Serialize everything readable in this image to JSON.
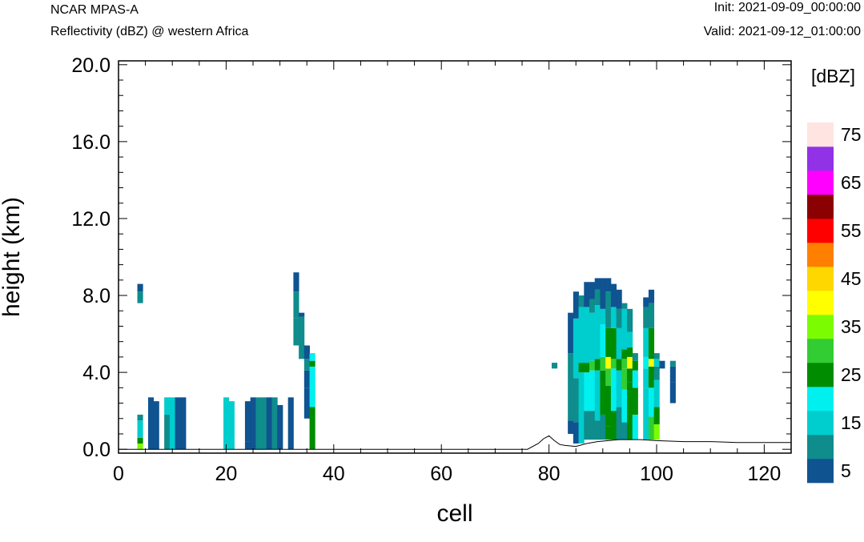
{
  "header": {
    "model": "NCAR MPAS-A",
    "field_title": "Reflectivity (dBZ) @ western Africa",
    "init": "Init: 2021-09-09_00:00:00",
    "valid": "Valid: 2021-09-12_01:00:00"
  },
  "chart_data": {
    "type": "heatmap",
    "xlabel": "cell",
    "ylabel": "height (km)",
    "xlim": [
      0,
      125
    ],
    "ylim": [
      -0.2,
      20.2
    ],
    "xticks": [
      0,
      20,
      40,
      60,
      80,
      100,
      120
    ],
    "xtick_labels": [
      "0",
      "20",
      "40",
      "60",
      "80",
      "100",
      "120"
    ],
    "yticks": [
      0,
      4,
      8,
      12,
      16,
      20
    ],
    "ytick_labels": [
      "0.0",
      "4.0",
      "8.0",
      "12.0",
      "16.0",
      "20.0"
    ],
    "grid": false,
    "colorbar": {
      "unit_label": "[dBZ]",
      "levels": [
        5,
        10,
        15,
        20,
        25,
        30,
        35,
        40,
        45,
        50,
        55,
        60,
        65,
        70,
        75
      ],
      "tick_labels": [
        "5",
        "15",
        "25",
        "35",
        "45",
        "55",
        "65",
        "75"
      ],
      "colors": [
        "#0f5391",
        "#0f8c8c",
        "#00cdcd",
        "#00f0f0",
        "#008c00",
        "#32cd32",
        "#7cfc00",
        "#ffff00",
        "#ffd700",
        "#ff7f00",
        "#ff0000",
        "#8b0000",
        "#ff00ff",
        "#9132e6",
        "#ffe4e1"
      ]
    },
    "terrain": {
      "cells": [
        0,
        76,
        78,
        79,
        80,
        81,
        82,
        83,
        85,
        87,
        89,
        91,
        93,
        95,
        97,
        100,
        105,
        110,
        115,
        120,
        125
      ],
      "height_km": [
        0.0,
        0.0,
        0.3,
        0.55,
        0.7,
        0.45,
        0.25,
        0.2,
        0.15,
        0.3,
        0.4,
        0.45,
        0.5,
        0.5,
        0.5,
        0.45,
        0.4,
        0.4,
        0.35,
        0.35,
        0.35
      ]
    },
    "reflectivity_columns": [
      {
        "cell": 4,
        "segments": [
          [
            0.0,
            0.3,
            35
          ],
          [
            0.3,
            0.6,
            25
          ],
          [
            0.6,
            1.5,
            15
          ],
          [
            1.5,
            1.8,
            10
          ],
          [
            7.6,
            8.2,
            10
          ],
          [
            8.2,
            8.6,
            5
          ]
        ]
      },
      {
        "cell": 6,
        "segments": [
          [
            0.0,
            2.7,
            5
          ]
        ]
      },
      {
        "cell": 7,
        "segments": [
          [
            0.0,
            2.5,
            5
          ]
        ]
      },
      {
        "cell": 9,
        "segments": [
          [
            0.0,
            1.8,
            10
          ],
          [
            1.8,
            2.7,
            15
          ]
        ]
      },
      {
        "cell": 10,
        "segments": [
          [
            0.0,
            2.7,
            15
          ]
        ]
      },
      {
        "cell": 11,
        "segments": [
          [
            0.0,
            2.7,
            5
          ]
        ]
      },
      {
        "cell": 12,
        "segments": [
          [
            0.0,
            2.7,
            5
          ]
        ]
      },
      {
        "cell": 20,
        "segments": [
          [
            0.0,
            2.7,
            15
          ]
        ]
      },
      {
        "cell": 21,
        "segments": [
          [
            0.0,
            2.5,
            15
          ]
        ]
      },
      {
        "cell": 24,
        "segments": [
          [
            0.0,
            0.4,
            5
          ],
          [
            0.4,
            2.5,
            5
          ]
        ]
      },
      {
        "cell": 25,
        "segments": [
          [
            0.0,
            2.7,
            5
          ]
        ]
      },
      {
        "cell": 26,
        "segments": [
          [
            0.0,
            2.7,
            10
          ]
        ]
      },
      {
        "cell": 27,
        "segments": [
          [
            0.0,
            2.7,
            10
          ]
        ]
      },
      {
        "cell": 28,
        "segments": [
          [
            0.0,
            2.7,
            5
          ]
        ]
      },
      {
        "cell": 29,
        "segments": [
          [
            0.0,
            2.7,
            10
          ]
        ]
      },
      {
        "cell": 30,
        "segments": [
          [
            0.0,
            2.3,
            5
          ]
        ]
      },
      {
        "cell": 32,
        "segments": [
          [
            0.0,
            2.7,
            5
          ]
        ]
      },
      {
        "cell": 33,
        "segments": [
          [
            5.4,
            6.8,
            10
          ],
          [
            6.8,
            8.2,
            10
          ],
          [
            8.2,
            9.2,
            5
          ]
        ]
      },
      {
        "cell": 34,
        "segments": [
          [
            4.7,
            5.9,
            10
          ],
          [
            5.9,
            6.9,
            10
          ],
          [
            6.9,
            7.1,
            5
          ]
        ]
      },
      {
        "cell": 35,
        "segments": [
          [
            1.6,
            3.2,
            5
          ],
          [
            3.2,
            4.1,
            5
          ],
          [
            4.1,
            4.7,
            10
          ],
          [
            4.7,
            5.4,
            5
          ]
        ]
      },
      {
        "cell": 36,
        "segments": [
          [
            0.0,
            2.2,
            25
          ],
          [
            2.2,
            4.3,
            20
          ],
          [
            4.3,
            4.6,
            25
          ],
          [
            4.6,
            5.0,
            20
          ]
        ]
      },
      {
        "cell": 81,
        "segments": [
          [
            4.2,
            4.5,
            10
          ]
        ]
      },
      {
        "cell": 84,
        "segments": [
          [
            0.8,
            1.5,
            5
          ],
          [
            1.5,
            5.0,
            10
          ],
          [
            5.0,
            7.1,
            5
          ]
        ]
      },
      {
        "cell": 85,
        "segments": [
          [
            0.3,
            1.4,
            5
          ],
          [
            1.4,
            3.7,
            10
          ],
          [
            3.7,
            6.8,
            15
          ],
          [
            6.8,
            8.2,
            5
          ]
        ]
      },
      {
        "cell": 86,
        "segments": [
          [
            0.3,
            4.0,
            15
          ],
          [
            4.0,
            4.5,
            25
          ],
          [
            4.5,
            7.4,
            15
          ],
          [
            7.4,
            8.0,
            10
          ]
        ]
      },
      {
        "cell": 87,
        "segments": [
          [
            0.5,
            2.0,
            10
          ],
          [
            2.0,
            4.0,
            20
          ],
          [
            4.0,
            4.5,
            25
          ],
          [
            4.5,
            7.4,
            15
          ],
          [
            7.4,
            8.7,
            5
          ]
        ]
      },
      {
        "cell": 88,
        "segments": [
          [
            0.5,
            2.0,
            10
          ],
          [
            2.0,
            4.1,
            20
          ],
          [
            4.1,
            4.6,
            30
          ],
          [
            4.6,
            7.1,
            15
          ],
          [
            7.1,
            7.8,
            10
          ],
          [
            7.8,
            8.7,
            5
          ]
        ]
      },
      {
        "cell": 89,
        "segments": [
          [
            0.5,
            1.5,
            10
          ],
          [
            1.5,
            4.1,
            15
          ],
          [
            4.1,
            4.7,
            25
          ],
          [
            4.7,
            7.5,
            15
          ],
          [
            7.5,
            8.3,
            10
          ],
          [
            8.3,
            8.9,
            5
          ]
        ]
      },
      {
        "cell": 90,
        "segments": [
          [
            0.5,
            1.8,
            10
          ],
          [
            1.8,
            4.1,
            25
          ],
          [
            4.1,
            4.8,
            30
          ],
          [
            4.8,
            6.5,
            20
          ],
          [
            6.5,
            7.3,
            15
          ],
          [
            7.3,
            8.9,
            5
          ]
        ]
      },
      {
        "cell": 91,
        "segments": [
          [
            0.5,
            1.2,
            25
          ],
          [
            1.2,
            3.3,
            25
          ],
          [
            3.3,
            4.2,
            30
          ],
          [
            4.2,
            4.8,
            40
          ],
          [
            4.8,
            6.3,
            25
          ],
          [
            6.3,
            7.4,
            10
          ],
          [
            7.4,
            8.2,
            10
          ],
          [
            8.2,
            8.9,
            5
          ]
        ]
      },
      {
        "cell": 92,
        "segments": [
          [
            0.5,
            2.0,
            25
          ],
          [
            2.0,
            4.2,
            20
          ],
          [
            4.2,
            4.7,
            30
          ],
          [
            4.7,
            6.3,
            25
          ],
          [
            6.3,
            7.4,
            15
          ],
          [
            7.4,
            8.6,
            5
          ]
        ]
      },
      {
        "cell": 93,
        "segments": [
          [
            0.5,
            2.2,
            10
          ],
          [
            2.2,
            4.1,
            15
          ],
          [
            4.1,
            4.7,
            25
          ],
          [
            4.7,
            6.3,
            15
          ],
          [
            6.3,
            7.3,
            10
          ],
          [
            7.3,
            8.3,
            5
          ]
        ]
      },
      {
        "cell": 94,
        "segments": [
          [
            0.5,
            1.4,
            10
          ],
          [
            1.4,
            3.1,
            20
          ],
          [
            3.1,
            4.2,
            30
          ],
          [
            4.2,
            4.7,
            30
          ],
          [
            4.7,
            5.2,
            25
          ],
          [
            5.2,
            7.3,
            15
          ],
          [
            7.3,
            7.6,
            10
          ]
        ]
      },
      {
        "cell": 95,
        "segments": [
          [
            0.5,
            1.8,
            25
          ],
          [
            1.8,
            3.5,
            25
          ],
          [
            3.5,
            4.2,
            25
          ],
          [
            4.2,
            4.8,
            40
          ],
          [
            4.8,
            5.3,
            25
          ],
          [
            5.3,
            6.1,
            15
          ],
          [
            6.1,
            7.3,
            10
          ]
        ]
      },
      {
        "cell": 96,
        "segments": [
          [
            0.5,
            1.8,
            20
          ],
          [
            1.8,
            3.2,
            25
          ],
          [
            3.2,
            4.1,
            20
          ],
          [
            4.1,
            4.6,
            25
          ],
          [
            4.6,
            5.0,
            10
          ]
        ]
      },
      {
        "cell": 98,
        "segments": [
          [
            0.5,
            3.2,
            15
          ],
          [
            3.2,
            4.2,
            15
          ],
          [
            4.2,
            4.8,
            20
          ],
          [
            4.8,
            6.3,
            15
          ],
          [
            6.3,
            7.4,
            10
          ],
          [
            7.4,
            7.9,
            5
          ]
        ]
      },
      {
        "cell": 99,
        "segments": [
          [
            0.5,
            1.7,
            30
          ],
          [
            1.7,
            3.2,
            20
          ],
          [
            3.2,
            4.3,
            25
          ],
          [
            4.3,
            4.7,
            40
          ],
          [
            4.7,
            6.3,
            25
          ],
          [
            6.3,
            7.6,
            10
          ],
          [
            7.6,
            8.3,
            5
          ]
        ]
      },
      {
        "cell": 100,
        "segments": [
          [
            0.5,
            1.3,
            35
          ],
          [
            1.3,
            2.2,
            25
          ],
          [
            2.2,
            3.6,
            15
          ],
          [
            3.6,
            4.3,
            10
          ],
          [
            4.3,
            4.7,
            15
          ],
          [
            4.7,
            5.0,
            10
          ]
        ]
      },
      {
        "cell": 101,
        "segments": [
          [
            4.2,
            4.6,
            5
          ]
        ]
      },
      {
        "cell": 103,
        "segments": [
          [
            2.4,
            3.5,
            5
          ],
          [
            3.5,
            4.3,
            5
          ],
          [
            4.3,
            4.6,
            10
          ]
        ]
      }
    ]
  }
}
